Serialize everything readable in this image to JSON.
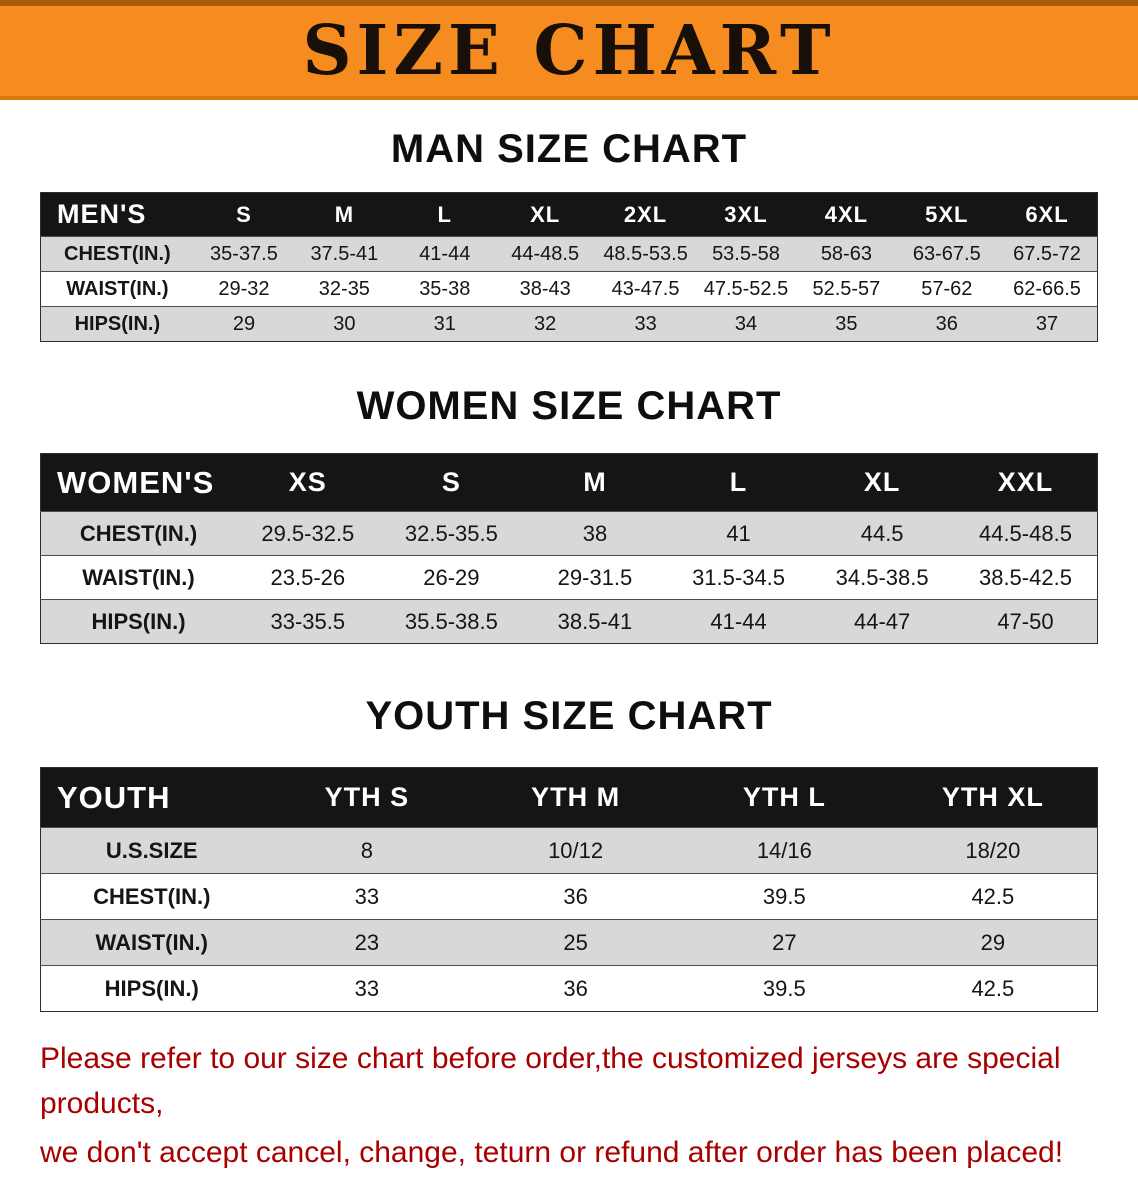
{
  "banner": {
    "title": "SIZE CHART"
  },
  "colors": {
    "banner-bg": "#f68b1f",
    "header-bg": "#151515",
    "stripe-bg": "#d8d8d8",
    "footer-text": "#a80000"
  },
  "men": {
    "heading": "MAN SIZE CHART",
    "table": {
      "header": [
        "MEN'S",
        "S",
        "M",
        "L",
        "XL",
        "2XL",
        "3XL",
        "4XL",
        "5XL",
        "6XL"
      ],
      "rows": [
        [
          "CHEST(IN.)",
          "35-37.5",
          "37.5-41",
          "41-44",
          "44-48.5",
          "48.5-53.5",
          "53.5-58",
          "58-63",
          "63-67.5",
          "67.5-72"
        ],
        [
          "WAIST(IN.)",
          "29-32",
          "32-35",
          "35-38",
          "38-43",
          "43-47.5",
          "47.5-52.5",
          "52.5-57",
          "57-62",
          "62-66.5"
        ],
        [
          "HIPS(IN.)",
          "29",
          "30",
          "31",
          "32",
          "33",
          "34",
          "35",
          "36",
          "37"
        ]
      ]
    }
  },
  "women": {
    "heading": "WOMEN SIZE CHART",
    "table": {
      "header": [
        "WOMEN'S",
        "XS",
        "S",
        "M",
        "L",
        "XL",
        "XXL"
      ],
      "rows": [
        [
          "CHEST(IN.)",
          "29.5-32.5",
          "32.5-35.5",
          "38",
          "41",
          "44.5",
          "44.5-48.5"
        ],
        [
          "WAIST(IN.)",
          "23.5-26",
          "26-29",
          "29-31.5",
          "31.5-34.5",
          "34.5-38.5",
          "38.5-42.5"
        ],
        [
          "HIPS(IN.)",
          "33-35.5",
          "35.5-38.5",
          "38.5-41",
          "41-44",
          "44-47",
          "47-50"
        ]
      ]
    }
  },
  "youth": {
    "heading": "YOUTH SIZE CHART",
    "table": {
      "header": [
        "YOUTH",
        "YTH S",
        "YTH M",
        "YTH L",
        "YTH XL"
      ],
      "rows": [
        [
          "U.S.SIZE",
          "8",
          "10/12",
          "14/16",
          "18/20"
        ],
        [
          "CHEST(IN.)",
          "33",
          "36",
          "39.5",
          "42.5"
        ],
        [
          "WAIST(IN.)",
          "23",
          "25",
          "27",
          "29"
        ],
        [
          "HIPS(IN.)",
          "33",
          "36",
          "39.5",
          "42.5"
        ]
      ]
    }
  },
  "footer": {
    "line1": "Please refer to our size chart before order,the customized jerseys are special products,",
    "line2": "we don't accept cancel, change, teturn or refund after order has been placed!"
  }
}
